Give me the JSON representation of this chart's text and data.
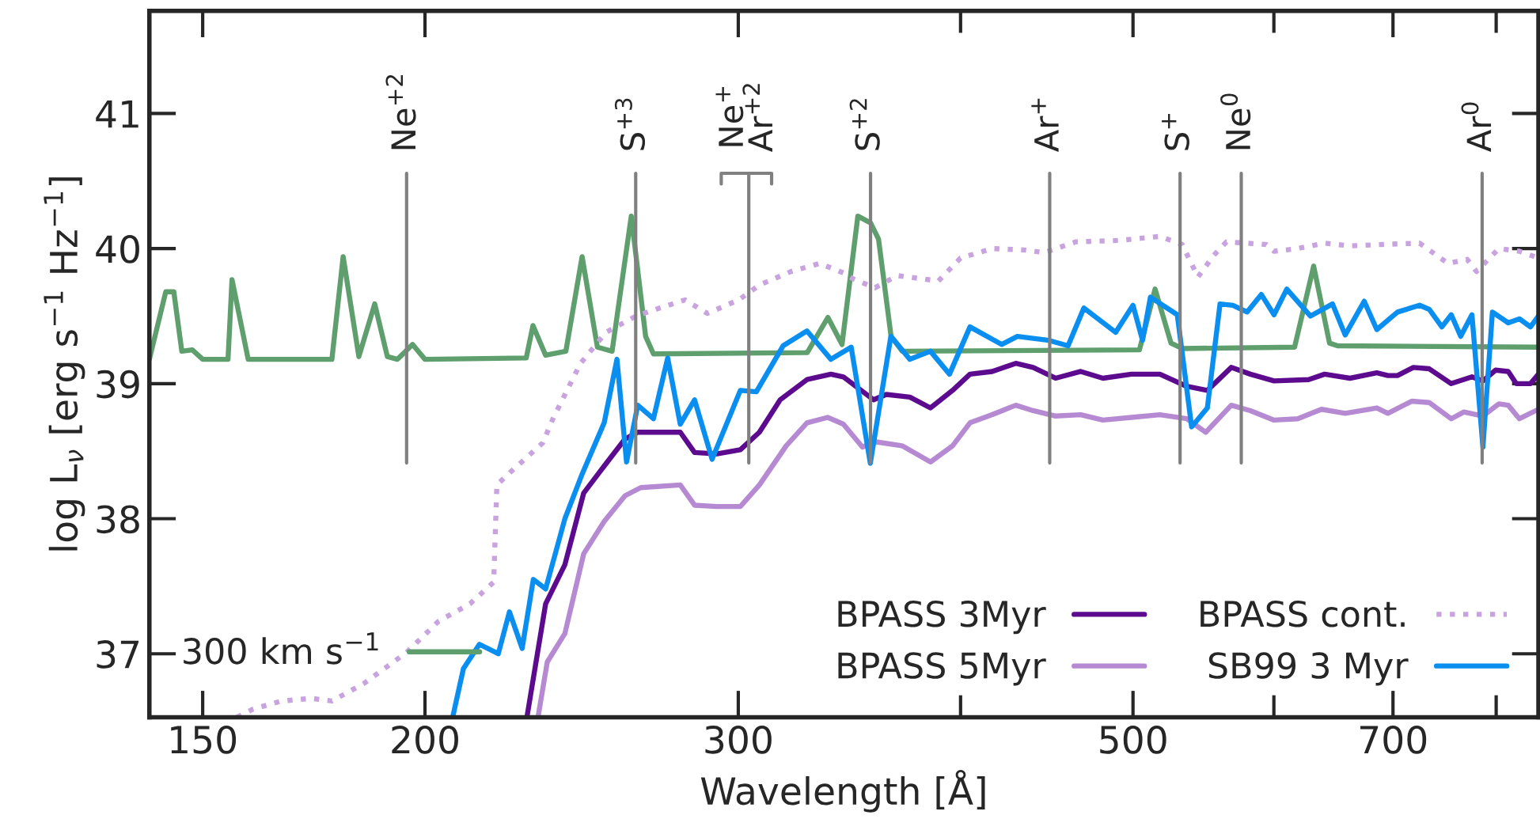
{
  "chart_data": {
    "type": "line",
    "xlabel": "Wavelength [Å]",
    "ylabel": "log L$_{ν}$ [erg s$^{−1}$ Hz$^{−1}$]",
    "log": "x",
    "xlim": [
      140,
      845
    ],
    "ylim": [
      36.53,
      41.76
    ],
    "xticks": [
      150,
      200,
      300,
      {
        "value": 400,
        "label": null
      },
      500,
      {
        "value": 600,
        "label": null
      },
      700,
      {
        "value": 800,
        "label": null
      }
    ],
    "yticks": [
      37,
      38,
      39,
      40,
      41
    ],
    "legend": "bottom",
    "series": [
      {
        "name": "300 km s$^{−1}$",
        "color": "#5f9f6e",
        "line_style": "solid",
        "x": [
          140,
          143,
          144.5,
          146,
          148,
          150,
          155,
          155.8,
          159.1,
          177.3,
          179.9,
          183.6,
          187.4,
          190.5,
          193,
          196.8,
          200,
          228,
          230,
          233.8,
          240,
          245.1,
          250,
          254.8,
          261.2,
          266.1,
          268.8,
          328,
          336.9,
          343.1,
          350.2,
          356,
          359.7,
          365.6,
          370.9,
          504.2,
          514.5,
          525.2,
          532.9,
          616.3,
          631.7,
          644.8,
          651.5,
          845
        ],
        "values": [
          39.18,
          39.68,
          39.68,
          39.24,
          39.25,
          39.18,
          39.18,
          39.77,
          39.18,
          39.18,
          39.94,
          39.2,
          39.59,
          39.2,
          39.18,
          39.29,
          39.18,
          39.19,
          39.43,
          39.21,
          39.24,
          39.94,
          39.27,
          39.24,
          40.24,
          39.35,
          39.22,
          39.23,
          39.49,
          39.29,
          40.24,
          40.19,
          40.07,
          39.35,
          39.24,
          39.25,
          39.7,
          39.3,
          39.26,
          39.27,
          39.87,
          39.3,
          39.28,
          39.27
        ]
      },
      {
        "name": "BPASS 3Myr",
        "color": "#5c0a8e",
        "line_style": "solid",
        "x": [
          228.2,
          233.8,
          239.7,
          245.6,
          252.2,
          259.1,
          263.4,
          278.3,
          283.5,
          291.8,
          300.8,
          308.3,
          316.7,
          327.9,
          338.2,
          343.7,
          357.4,
          363.3,
          374.6,
          384.7,
          395.9,
          404.9,
          416.7,
          429.6,
          439.4,
          452.3,
          467.3,
          480.9,
          499,
          517.7,
          536,
          550.5,
          567.8,
          582,
          600.1,
          627.6,
          640.7,
          662.1,
          685.5,
          695.4,
          704.1,
          718.7,
          733.6,
          754.8,
          775.3,
          786.4,
          799.4,
          812.6,
          821,
          836.3,
          845
        ],
        "values": [
          36.53,
          37.37,
          37.66,
          38.19,
          38.39,
          38.59,
          38.64,
          38.64,
          38.49,
          38.48,
          38.51,
          38.64,
          38.88,
          39.03,
          39.07,
          39.05,
          38.88,
          38.92,
          38.9,
          38.82,
          38.95,
          39.07,
          39.09,
          39.15,
          39.12,
          39.04,
          39.09,
          39.04,
          39.07,
          39.07,
          38.98,
          38.95,
          39.12,
          39.07,
          39.02,
          39.03,
          39.07,
          39.04,
          39.08,
          39.06,
          39.06,
          39.12,
          39.11,
          39.0,
          39.05,
          39.02,
          39.1,
          39.09,
          39.0,
          39.0,
          39.07
        ]
      },
      {
        "name": "BPASS 5Myr",
        "color": "#b68ad2",
        "line_style": "solid",
        "x": [
          231.5,
          234.3,
          239.7,
          245.6,
          252.2,
          259.1,
          264.4,
          278.3,
          283.5,
          291.8,
          300.8,
          308.3,
          319.2,
          327.9,
          336.8,
          343.7,
          352.3,
          358.1,
          370.8,
          384.7,
          395.9,
          404.9,
          416.7,
          429.6,
          439.4,
          452.3,
          467.3,
          480.9,
          499,
          517.7,
          536,
          549.4,
          567.8,
          582,
          600.1,
          618.8,
          638.1,
          658,
          685.5,
          695.4,
          717.2,
          733.6,
          754.8,
          767.3,
          786.4,
          802.7,
          812.6,
          824.4,
          845
        ],
        "values": [
          36.53,
          36.94,
          37.15,
          37.74,
          37.98,
          38.17,
          38.23,
          38.25,
          38.1,
          38.09,
          38.09,
          38.25,
          38.54,
          38.71,
          38.75,
          38.7,
          38.53,
          38.57,
          38.54,
          38.42,
          38.54,
          38.71,
          38.77,
          38.84,
          38.8,
          38.76,
          38.77,
          38.73,
          38.75,
          38.77,
          38.74,
          38.64,
          38.84,
          38.8,
          38.73,
          38.74,
          38.81,
          38.78,
          38.82,
          38.78,
          38.87,
          38.86,
          38.74,
          38.79,
          38.76,
          38.85,
          38.84,
          38.74,
          38.81
        ]
      },
      {
        "name": "BPASS cont.",
        "color": "#c9a3df",
        "line_style": "dotted",
        "x": [
          156.8,
          160.1,
          166.1,
          172.7,
          177.3,
          184.8,
          195.3,
          203.5,
          212,
          218.6,
          219.5,
          223.6,
          232.9,
          236.2,
          244.6,
          252.8,
          262.8,
          271,
          280,
          288.2,
          300.2,
          308.3,
          321.2,
          333.3,
          343.7,
          348.7,
          358.1,
          368.5,
          388.7,
          400,
          416.7,
          434.1,
          445.8,
          464.4,
          490.9,
          517.7,
          532.8,
          543.9,
          555.1,
          564.3,
          594,
          600.1,
          618.8,
          640.7,
          662.1,
          689.8,
          724.5,
          751.7,
          770.5,
          779.9,
          802.7,
          824.4,
          845
        ],
        "values": [
          36.53,
          36.59,
          36.65,
          36.67,
          36.65,
          36.78,
          37.01,
          37.24,
          37.37,
          37.53,
          38.25,
          38.35,
          38.56,
          38.75,
          39.15,
          39.38,
          39.5,
          39.56,
          39.62,
          39.52,
          39.62,
          39.73,
          39.83,
          39.89,
          39.82,
          39.77,
          39.71,
          39.8,
          39.76,
          39.93,
          40.0,
          39.99,
          39.97,
          40.05,
          40.06,
          40.09,
          40.03,
          39.79,
          39.95,
          40.05,
          40.03,
          39.98,
          40.0,
          40.04,
          40.02,
          40.03,
          40.04,
          39.89,
          39.92,
          39.83,
          40.0,
          39.98,
          39.93
        ]
      },
      {
        "name": "SB99 3 Myr",
        "color": "#0a8ff0",
        "line_style": "solid",
        "x": [
          207.3,
          210.2,
          214.6,
          219.9,
          223.1,
          226.8,
          230.1,
          233.8,
          239.7,
          245.1,
          252.2,
          256.4,
          259.6,
          263.4,
          268.8,
          273.8,
          278.3,
          283.5,
          290,
          300.8,
          307.1,
          317.9,
          327.9,
          338.2,
          347.2,
          355.9,
          365.5,
          374.6,
          384.7,
          394.3,
          404.9,
          421.8,
          430.5,
          448.5,
          459.7,
          469.2,
          488.9,
          500,
          506.2,
          511.4,
          529.5,
          539.4,
          550.5,
          559.6,
          569,
          579.6,
          590.3,
          600.1,
          610.1,
          629,
          647.3,
          658,
          674.4,
          685.5,
          704.1,
          724.5,
          733.6,
          745.7,
          754.8,
          764.1,
          775.3,
          786.4,
          796.1,
          812.6,
          824.4,
          836.3,
          845
        ],
        "values": [
          36.53,
          36.89,
          37.07,
          37.0,
          37.31,
          37.04,
          37.55,
          37.48,
          38.0,
          38.33,
          38.71,
          39.18,
          38.42,
          38.84,
          38.74,
          39.19,
          38.7,
          38.88,
          38.44,
          38.95,
          38.94,
          39.28,
          39.39,
          39.18,
          39.27,
          38.41,
          39.35,
          39.18,
          39.24,
          39.07,
          39.42,
          39.29,
          39.35,
          39.32,
          39.28,
          39.56,
          39.38,
          39.58,
          39.32,
          39.64,
          39.51,
          38.68,
          38.82,
          39.59,
          39.58,
          39.53,
          39.66,
          39.51,
          39.7,
          39.5,
          39.59,
          39.36,
          39.61,
          39.4,
          39.53,
          39.58,
          39.55,
          39.42,
          39.51,
          39.35,
          39.51,
          38.53,
          39.53,
          39.45,
          39.48,
          39.42,
          39.5
        ]
      }
    ],
    "ref_lines": [
      {
        "axis": "x",
        "value": 195.3,
        "label": "Ne$^{+2}$",
        "color": "#808080"
      },
      {
        "axis": "x",
        "value": 262.7,
        "label": "S$^{+3}$",
        "color": "#808080"
      },
      {
        "axis": "x",
        "value": 304.1,
        "label": "Ne$^{+}$\nAr$^{+2}$",
        "color": "#808080"
      },
      {
        "axis": "x",
        "value": 356,
        "label": "S$^{+2}$",
        "color": "#808080"
      },
      {
        "axis": "x",
        "value": 448.9,
        "label": "Ar$^{+}$",
        "color": "#808080"
      },
      {
        "axis": "x",
        "value": 531.4,
        "label": "S$^{+}$",
        "color": "#808080"
      },
      {
        "axis": "x",
        "value": 575.2,
        "label": "Ne$^{0}$",
        "color": "#808080"
      },
      {
        "axis": "x",
        "value": 785.6,
        "label": "Ar$^{0}$",
        "color": "#808080"
      }
    ]
  }
}
